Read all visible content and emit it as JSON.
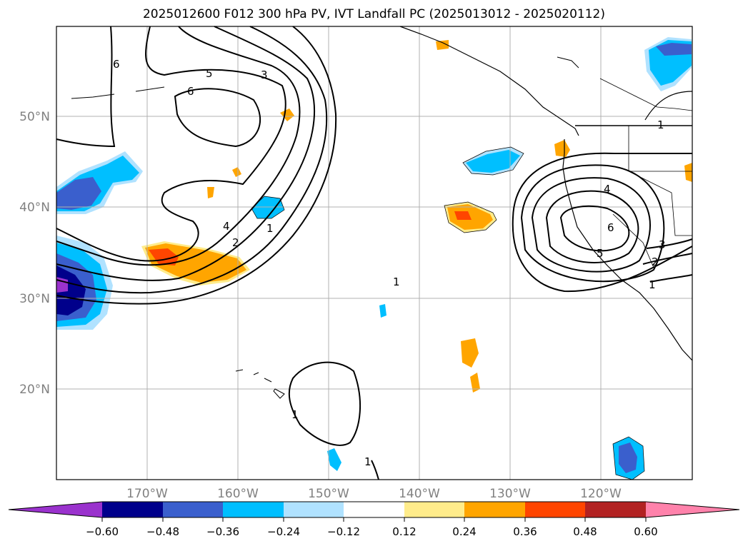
{
  "title": "2025012600 F012 300 hPa PV, IVT Landfall PC (2025013012 - 2025020112)",
  "map": {
    "lat_labels": [
      "50°N",
      "40°N",
      "30°N",
      "20°N"
    ],
    "lon_labels": [
      "170°W",
      "160°W",
      "150°W",
      "140°W",
      "130°W",
      "120°W"
    ],
    "label_color": "#808080"
  },
  "contour_labels": [
    "6",
    "5",
    "3",
    "6",
    "4",
    "2",
    "1",
    "1",
    "4",
    "6",
    "5",
    "3",
    "2",
    "1",
    "1",
    "1",
    "1"
  ],
  "colorbar": {
    "tick_labels": [
      "−0.60",
      "−0.48",
      "−0.36",
      "−0.24",
      "−0.12",
      "0.12",
      "0.24",
      "0.36",
      "0.48",
      "0.60"
    ],
    "colors": [
      "#9a32cd",
      "#00008b",
      "#3a5fcd",
      "#00bfff",
      "#b0e2ff",
      "#ffffff",
      "#ffec8b",
      "#ffa500",
      "#ff4500",
      "#b22222",
      "#ff82ab"
    ]
  }
}
